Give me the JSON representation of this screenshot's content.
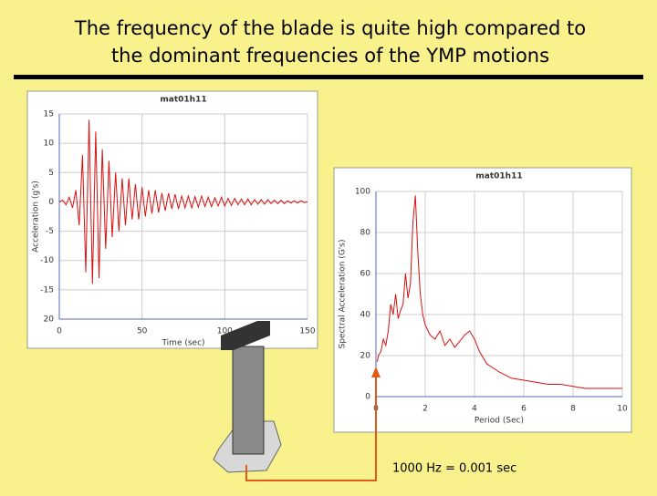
{
  "slide": {
    "title_lines": [
      "The  frequency of the blade is quite high compared to",
      "the dominant frequencies of the YMP motions"
    ],
    "annotation": "1000 Hz = 0.001 sec"
  },
  "chart_data": [
    {
      "type": "line",
      "title": "mat01h11",
      "x_label": "Time (sec)",
      "y_label": "Acceleration (g's)",
      "xlim": [
        0,
        150
      ],
      "ylim": [
        -20,
        15
      ],
      "xticks": [
        0,
        50,
        100,
        150
      ],
      "yticks": [
        15,
        10,
        5,
        0,
        -5,
        -10,
        -15,
        {
          "value": -20,
          "label": "20"
        }
      ],
      "grid": true,
      "x": [
        0,
        2,
        4,
        6,
        8,
        10,
        12,
        14,
        16,
        18,
        20,
        22,
        24,
        26,
        28,
        30,
        32,
        34,
        36,
        38,
        40,
        42,
        44,
        46,
        48,
        50,
        52,
        54,
        56,
        58,
        60,
        62,
        64,
        66,
        68,
        70,
        72,
        74,
        76,
        78,
        80,
        82,
        84,
        86,
        88,
        90,
        92,
        94,
        96,
        98,
        100,
        102,
        104,
        106,
        108,
        110,
        112,
        114,
        116,
        118,
        120,
        122,
        124,
        126,
        128,
        130,
        132,
        134,
        136,
        138,
        140,
        142,
        144,
        146,
        148,
        150
      ],
      "series": [
        {
          "color": "#d81010",
          "values": [
            0,
            0.3,
            -0.5,
            0.8,
            -1,
            2,
            -4,
            8,
            -12,
            14,
            -14,
            12,
            -13,
            9,
            -8,
            7,
            -6,
            5,
            -5,
            4,
            -4,
            4,
            -3,
            3,
            -3,
            2.5,
            -2.5,
            2,
            -2,
            2,
            -1.8,
            1.5,
            -1.5,
            1.5,
            -1.2,
            1.3,
            -1.2,
            1,
            -1,
            1,
            -1,
            0.9,
            -0.9,
            1,
            -0.8,
            0.8,
            -0.8,
            0.7,
            -0.7,
            0.8,
            -0.7,
            0.6,
            -0.6,
            0.6,
            -0.5,
            0.5,
            -0.5,
            0.5,
            -0.5,
            0.4,
            -0.4,
            0.4,
            -0.4,
            0.4,
            -0.3,
            0.3,
            -0.3,
            0.3,
            -0.3,
            0.2,
            -0.2,
            0.2,
            -0.2,
            0.2,
            -0.1,
            0
          ]
        }
      ]
    },
    {
      "type": "line",
      "title": "mat01h11",
      "x_label": "Period (Sec)",
      "y_label": "Spectral Acceleration (G's)",
      "xlim": [
        0,
        10
      ],
      "ylim": [
        0,
        100
      ],
      "xticks": [
        0,
        2,
        4,
        6,
        8,
        10
      ],
      "yticks": [
        0,
        20,
        40,
        60,
        80,
        100
      ],
      "grid": true,
      "x": [
        0.05,
        0.1,
        0.2,
        0.3,
        0.4,
        0.5,
        0.6,
        0.7,
        0.8,
        0.9,
        1.0,
        1.1,
        1.2,
        1.3,
        1.4,
        1.5,
        1.6,
        1.7,
        1.8,
        1.9,
        2.0,
        2.2,
        2.4,
        2.6,
        2.8,
        3.0,
        3.2,
        3.4,
        3.6,
        3.8,
        4.0,
        4.2,
        4.5,
        5.0,
        5.5,
        6.0,
        6.5,
        7.0,
        7.5,
        8.0,
        8.5,
        9.0,
        9.5,
        10
      ],
      "series": [
        {
          "color": "#d81010",
          "values": [
            17,
            20,
            22,
            28,
            25,
            32,
            45,
            40,
            50,
            38,
            42,
            45,
            60,
            48,
            55,
            85,
            98,
            70,
            50,
            40,
            35,
            30,
            28,
            32,
            25,
            28,
            24,
            27,
            30,
            32,
            28,
            22,
            16,
            12,
            9,
            8,
            7,
            6,
            6,
            5,
            4,
            4,
            4,
            4
          ]
        }
      ]
    }
  ]
}
